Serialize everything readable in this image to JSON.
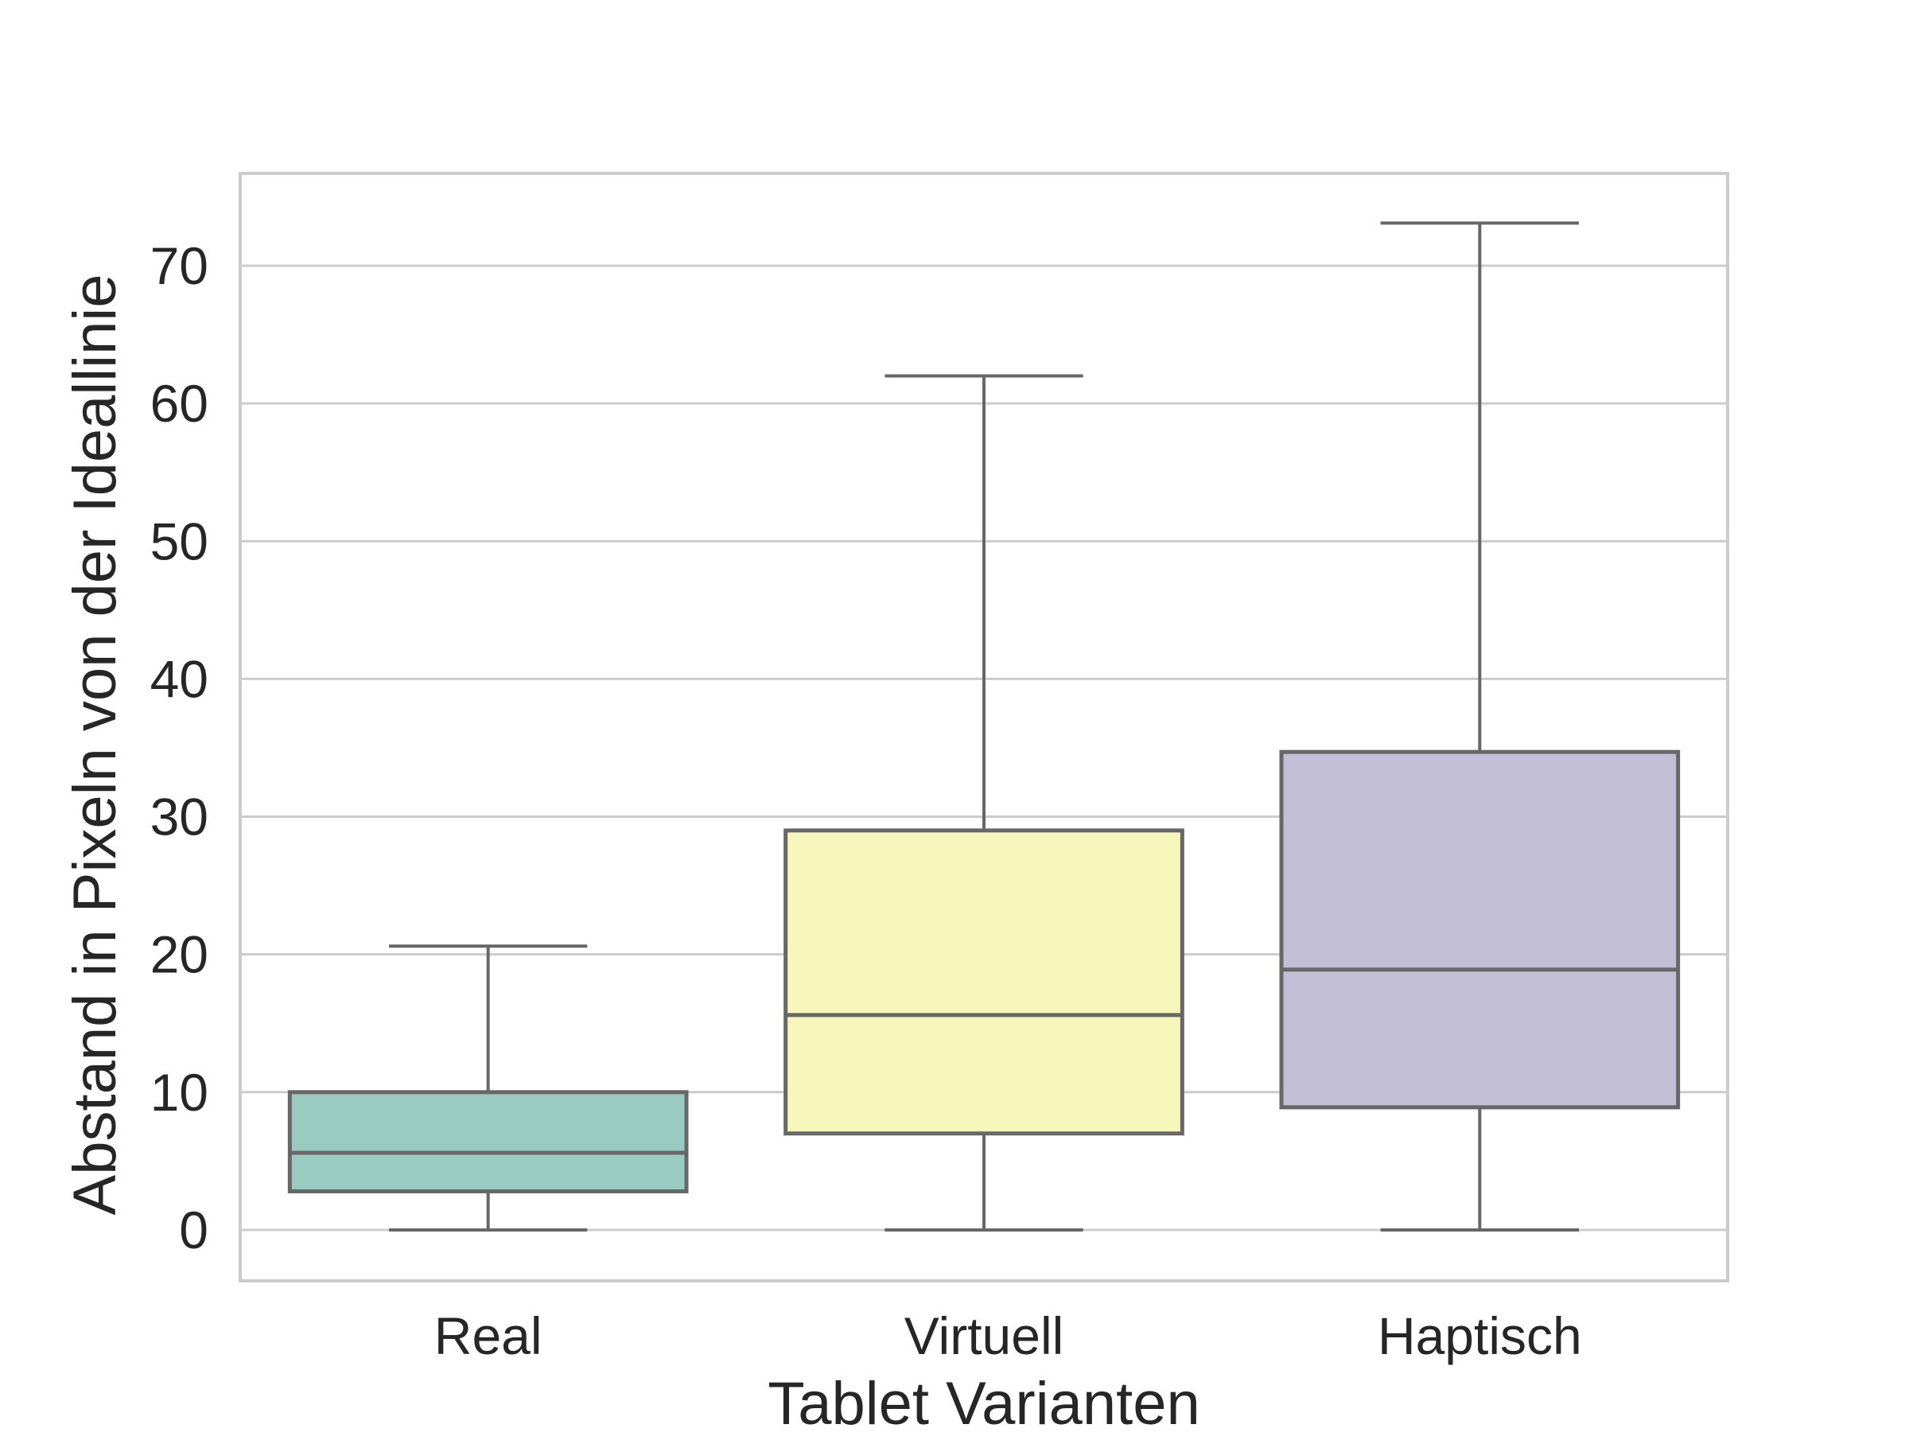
{
  "chart_data": {
    "type": "box",
    "title": "",
    "xlabel": "Tablet Varianten",
    "ylabel": "Abstand in Pixeln von der Ideallinie",
    "ylim": [
      -3.7,
      76.7
    ],
    "yticks": [
      0,
      10,
      20,
      30,
      40,
      50,
      60,
      70
    ],
    "grid": true,
    "categories": [
      "Real",
      "Virtuell",
      "Haptisch"
    ],
    "boxes": [
      {
        "category": "Real",
        "whisker_low": 0,
        "q1": 2.8,
        "median": 5.6,
        "q3": 10.0,
        "whisker_high": 20.6,
        "color": "#99cbc3"
      },
      {
        "category": "Virtuell",
        "whisker_low": 0,
        "q1": 7.0,
        "median": 15.6,
        "q3": 29.0,
        "whisker_high": 62.0,
        "color": "#f7f6ba"
      },
      {
        "category": "Haptisch",
        "whisker_low": 0,
        "q1": 8.9,
        "median": 18.9,
        "q3": 34.7,
        "whisker_high": 73.1,
        "color": "#c2bed6"
      }
    ],
    "line_color": "#676767",
    "grid_color": "#cccccc"
  }
}
